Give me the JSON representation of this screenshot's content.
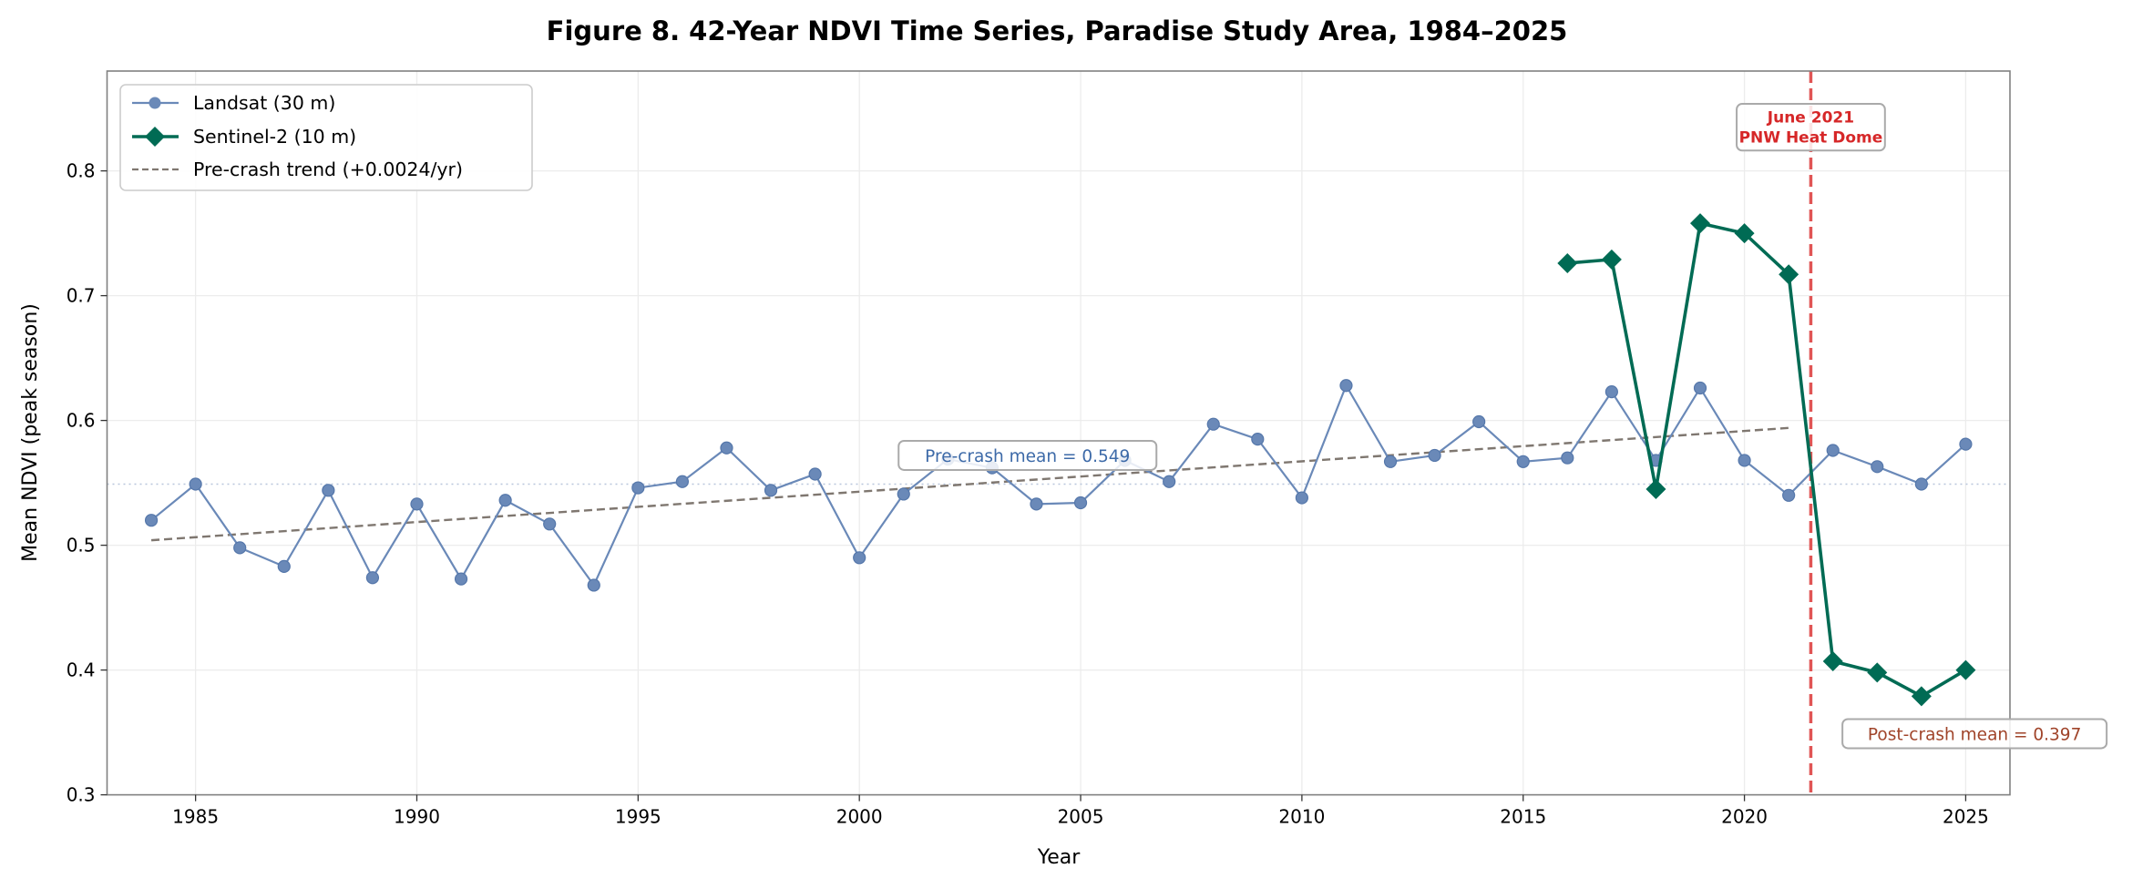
{
  "chart_data": {
    "type": "line",
    "title": "Figure 8.  42-Year NDVI Time Series, Paradise Study Area, 1984–2025",
    "xlabel": "Year",
    "ylabel": "Mean NDVI (peak season)",
    "xlim": [
      1983,
      2026
    ],
    "ylim": [
      0.3,
      0.88
    ],
    "xticks": [
      1985,
      1990,
      1995,
      2000,
      2005,
      2010,
      2015,
      2020,
      2025
    ],
    "yticks": [
      0.3,
      0.4,
      0.5,
      0.6,
      0.7,
      0.8
    ],
    "ytick_labels": [
      "0.3",
      "0.4",
      "0.5",
      "0.6",
      "0.7",
      "0.8"
    ],
    "grid": true,
    "legend_position": "top-left",
    "series": [
      {
        "name": "Landsat (30 m)",
        "color": "#6a89b8",
        "marker": "circle",
        "x": [
          1984,
          1985,
          1986,
          1987,
          1988,
          1989,
          1990,
          1991,
          1992,
          1993,
          1994,
          1995,
          1996,
          1997,
          1998,
          1999,
          2000,
          2001,
          2002,
          2003,
          2004,
          2005,
          2006,
          2007,
          2008,
          2009,
          2010,
          2011,
          2012,
          2013,
          2014,
          2015,
          2016,
          2017,
          2018,
          2019,
          2020,
          2021,
          2022,
          2023,
          2024,
          2025
        ],
        "y": [
          0.52,
          0.549,
          0.498,
          0.483,
          0.544,
          0.474,
          0.533,
          0.473,
          0.536,
          0.517,
          0.468,
          0.546,
          0.551,
          0.578,
          0.544,
          0.557,
          0.49,
          0.541,
          0.569,
          0.562,
          0.533,
          0.534,
          0.568,
          0.551,
          0.597,
          0.585,
          0.538,
          0.628,
          0.567,
          0.572,
          0.599,
          0.567,
          0.57,
          0.623,
          0.568,
          0.626,
          0.568,
          0.54,
          0.576,
          0.563,
          0.549,
          0.581
        ]
      },
      {
        "name": "Sentinel-2 (10 m)",
        "color": "#006b54",
        "marker": "diamond",
        "x": [
          2016,
          2017,
          2018,
          2019,
          2020,
          2021,
          2022,
          2023,
          2024,
          2025
        ],
        "y": [
          0.726,
          0.729,
          0.545,
          0.758,
          0.75,
          0.717,
          0.407,
          0.398,
          0.379,
          0.4
        ]
      },
      {
        "name": "Pre-crash trend (+0.0024/yr)",
        "color": "#7f7770",
        "style": "dashed",
        "x": [
          1984,
          2021
        ],
        "y": [
          0.504,
          0.594
        ]
      }
    ],
    "reference_lines": {
      "pre_crash_mean": {
        "value": 0.549,
        "color": "#b8c6dc",
        "style": "dotted"
      },
      "event_line": {
        "x": 2021.5,
        "color": "#e05555",
        "style": "dashed"
      }
    },
    "annotations": {
      "event": {
        "line1": "June 2021",
        "line2": "PNW Heat Dome",
        "color": "#d62728",
        "x": 2021.5,
        "y": 0.835
      },
      "pre_mean": {
        "text": "Pre-crash mean = 0.549",
        "color": "#3d6aa8",
        "x": 2003.8,
        "y": 0.572
      },
      "post_mean": {
        "text": "Post-crash mean = 0.397",
        "color": "#a0442a",
        "x": 2025.2,
        "y": 0.349
      }
    }
  }
}
